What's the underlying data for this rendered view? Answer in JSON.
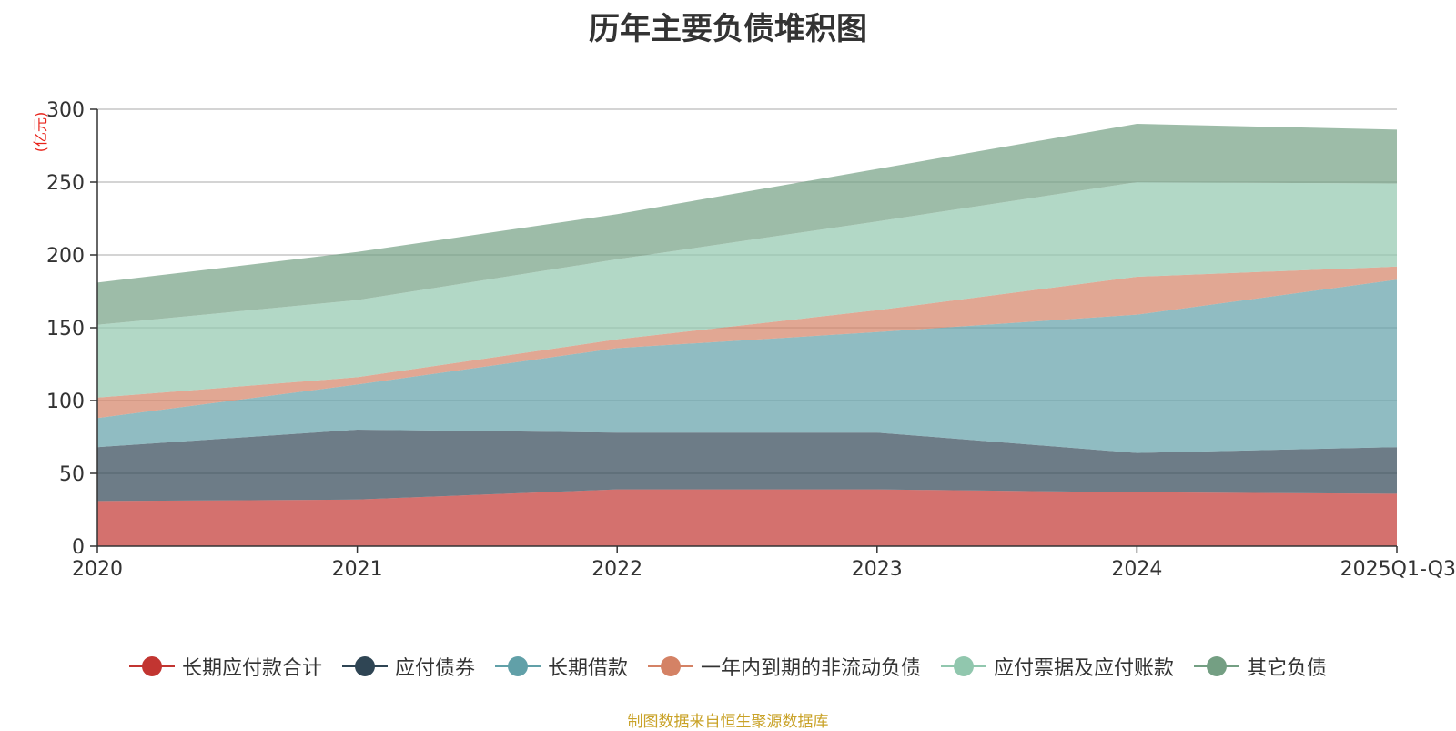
{
  "chart_data": {
    "type": "area",
    "stacked": true,
    "title": "历年主要负债堆积图",
    "unit_label": "(亿元)",
    "categories": [
      "2020",
      "2021",
      "2022",
      "2023",
      "2024",
      "2025Q1-Q3"
    ],
    "ylim": [
      0,
      300
    ],
    "yticks": [
      0,
      50,
      100,
      150,
      200,
      250,
      300
    ],
    "grid": true,
    "legend_position": "bottom",
    "series": [
      {
        "name": "长期应付款合计",
        "color": "#c23531",
        "values": [
          31,
          32,
          39,
          39,
          37,
          36
        ]
      },
      {
        "name": "应付债券",
        "color": "#2f4554",
        "values": [
          37,
          48,
          39,
          39,
          27,
          32
        ]
      },
      {
        "name": "长期借款",
        "color": "#61a0a8",
        "values": [
          20,
          31,
          58,
          69,
          95,
          115
        ]
      },
      {
        "name": "一年内到期的非流动负债",
        "color": "#d48265",
        "values": [
          14,
          5,
          6,
          15,
          26,
          9
        ]
      },
      {
        "name": "应付票据及应付账款",
        "color": "#91c7ae",
        "values": [
          50,
          53,
          55,
          61,
          65,
          57
        ]
      },
      {
        "name": "其它负债",
        "color": "#749f83",
        "values": [
          29,
          33,
          31,
          36,
          40,
          37
        ]
      }
    ],
    "source_note": "制图数据来自恒生聚源数据库"
  }
}
